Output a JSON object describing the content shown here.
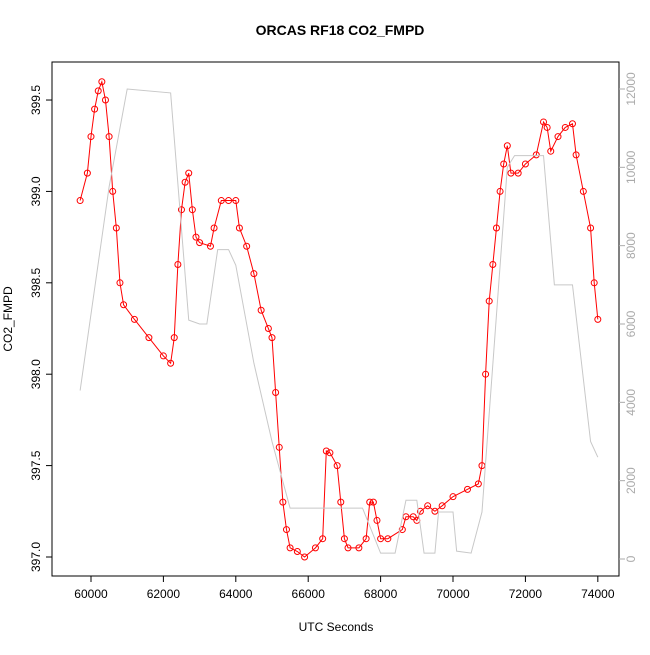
{
  "chart_data": {
    "type": "line",
    "title": "ORCAS RF18 CO2_FMPD",
    "x_label": "UTC Seconds",
    "y_label": "CO2_FMPD",
    "xlim": [
      58923,
      74585
    ],
    "xticks": [
      60000,
      62000,
      64000,
      66000,
      68000,
      70000,
      72000,
      74000
    ],
    "ylim": [
      396.896,
      399.708
    ],
    "yticks": [
      {
        "value": 397,
        "label": "397.0"
      },
      397.5,
      {
        "value": 398,
        "label": "398.0"
      },
      398.5,
      {
        "value": 399,
        "label": "399.0"
      },
      399.5
    ],
    "y2lim": [
      -434,
      12689
    ],
    "y2ticks": [
      0,
      2000,
      4000,
      6000,
      8000,
      10000,
      12000
    ],
    "series": [
      {
        "color": "#ff0000",
        "marker": "open-circle",
        "x": [
          59700,
          59900,
          60000,
          60100,
          60200,
          60300,
          60400,
          60500,
          60600,
          60700,
          60800,
          60900,
          61200,
          61600,
          62000,
          62200,
          62300,
          62400,
          62500,
          62600,
          62700,
          62800,
          62900,
          63000,
          63300,
          63400,
          63600,
          63800,
          64000,
          64100,
          64300,
          64500,
          64700,
          64900,
          65000,
          65100,
          65200,
          65300,
          65400,
          65500,
          65700,
          65900,
          66200,
          66400,
          66500,
          66600,
          66800,
          66900,
          67000,
          67100,
          67400,
          67600,
          67700,
          67800,
          67900,
          68000,
          68200,
          68600,
          68700,
          68900,
          69000,
          69100,
          69300,
          69500,
          69700,
          70000,
          70400,
          70700,
          70800,
          70900,
          71000,
          71100,
          71200,
          71300,
          71400,
          71500,
          71600,
          71800,
          72000,
          72300,
          72500,
          72600,
          72700,
          72900,
          73100,
          73300,
          73400,
          73600,
          73800,
          73900,
          74000
        ],
        "values": [
          398.95,
          399.1,
          399.3,
          399.45,
          399.55,
          399.6,
          399.5,
          399.3,
          399.0,
          398.8,
          398.5,
          398.38,
          398.3,
          398.2,
          398.1,
          398.06,
          398.2,
          398.6,
          398.9,
          399.05,
          399.1,
          398.9,
          398.75,
          398.72,
          398.7,
          398.8,
          398.95,
          398.95,
          398.95,
          398.8,
          398.7,
          398.55,
          398.35,
          398.25,
          398.2,
          397.9,
          397.6,
          397.3,
          397.15,
          397.05,
          397.03,
          397.0,
          397.05,
          397.1,
          397.58,
          397.57,
          397.5,
          397.3,
          397.1,
          397.05,
          397.05,
          397.1,
          397.3,
          397.3,
          397.2,
          397.1,
          397.1,
          397.15,
          397.22,
          397.22,
          397.2,
          397.25,
          397.28,
          397.25,
          397.28,
          397.33,
          397.37,
          397.4,
          397.5,
          398.0,
          398.4,
          398.6,
          398.8,
          399.0,
          399.15,
          399.25,
          399.1,
          399.1,
          399.15,
          399.2,
          399.38,
          399.35,
          399.22,
          399.3,
          399.35,
          399.37,
          399.2,
          399.0,
          398.8,
          398.5,
          398.3
        ]
      },
      {
        "color": "#c8c8c8",
        "axis": "y2",
        "x": [
          59700,
          60500,
          61000,
          62200,
          62700,
          63000,
          63200,
          63500,
          63800,
          64000,
          64500,
          65000,
          65500,
          66000,
          67500,
          68000,
          68400,
          68700,
          69000,
          69200,
          69500,
          69600,
          70000,
          70100,
          70500,
          70800,
          71500,
          71700,
          72500,
          72800,
          73300,
          73800,
          74000
        ],
        "values": [
          4300,
          9500,
          12000,
          11900,
          6100,
          6000,
          6000,
          7900,
          7900,
          7500,
          5000,
          3000,
          1300,
          1300,
          1300,
          150,
          150,
          1500,
          1500,
          150,
          150,
          1200,
          1200,
          200,
          150,
          1200,
          10000,
          10300,
          10300,
          7000,
          7000,
          3000,
          2600
        ]
      }
    ]
  }
}
